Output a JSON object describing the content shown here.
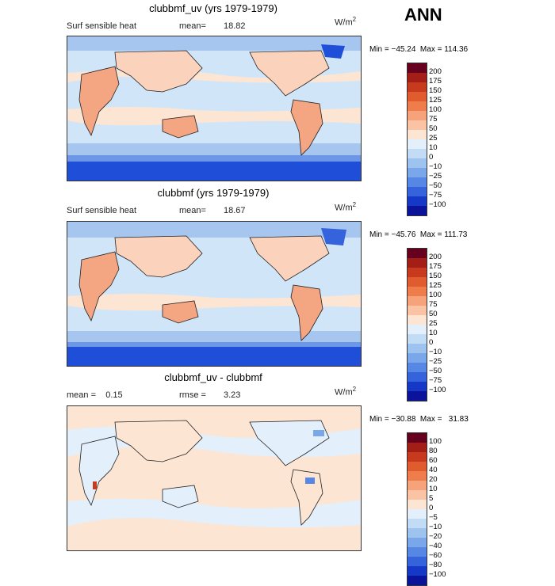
{
  "season": "ANN",
  "colors": {
    "land_warm_light": "#fbd3bd",
    "land_warm": "#f4a582",
    "ocean_light": "#d1e5f8",
    "ocean_mid": "#a7c6ef",
    "ocean_cool": "#6c97e6",
    "ice_deep": "#1f4fd8",
    "coastline": "#222222"
  },
  "panels": [
    {
      "title": "clubbmf_uv (yrs 1979-1979)",
      "left_label": "Surf sensible heat",
      "stat_label": "mean=",
      "stat_value": "18.82",
      "units_main": "W/m",
      "units_exp": "2",
      "min_max": "Min = −45.24  Max = 114.36",
      "colorbar": {
        "colors": [
          "#67001f",
          "#a21e16",
          "#c73a1e",
          "#e05b2e",
          "#ef7d4b",
          "#f6a27a",
          "#fac4a4",
          "#fde5d3",
          "#e3effb",
          "#c2dcf5",
          "#9ec3ef",
          "#7aa7ea",
          "#5787e4",
          "#3463dc",
          "#1538c6",
          "#0a139a"
        ],
        "ticks": [
          "200",
          "175",
          "150",
          "125",
          "100",
          "75",
          "50",
          "25",
          "10",
          "0",
          "−10",
          "−25",
          "−50",
          "−75",
          "−100"
        ]
      }
    },
    {
      "title": "clubbmf (yrs 1979-1979)",
      "left_label": "Surf sensible heat",
      "stat_label": "mean=",
      "stat_value": "18.67",
      "units_main": "W/m",
      "units_exp": "2",
      "min_max": "Min = −45.76  Max = 111.73",
      "colorbar": {
        "colors": [
          "#67001f",
          "#a21e16",
          "#c73a1e",
          "#e05b2e",
          "#ef7d4b",
          "#f6a27a",
          "#fac4a4",
          "#fde5d3",
          "#e3effb",
          "#c2dcf5",
          "#9ec3ef",
          "#7aa7ea",
          "#5787e4",
          "#3463dc",
          "#1538c6",
          "#0a139a"
        ],
        "ticks": [
          "200",
          "175",
          "150",
          "125",
          "100",
          "75",
          "50",
          "25",
          "10",
          "0",
          "−10",
          "−25",
          "−50",
          "−75",
          "−100"
        ]
      }
    },
    {
      "title": "clubbmf_uv - clubbmf",
      "left_label": "mean =    0.15",
      "stat_label": "rmse =",
      "stat_value": "3.23",
      "units_main": "W/m",
      "units_exp": "2",
      "min_max": "Min = −30.88  Max =   31.83",
      "colorbar": {
        "colors": [
          "#67001f",
          "#a21e16",
          "#c73a1e",
          "#e05b2e",
          "#ef7d4b",
          "#f6a27a",
          "#fac4a4",
          "#fde5d3",
          "#e3effb",
          "#c2dcf5",
          "#9ec3ef",
          "#7aa7ea",
          "#5787e4",
          "#3463dc",
          "#1538c6",
          "#0a139a"
        ],
        "ticks": [
          "100",
          "80",
          "60",
          "40",
          "20",
          "10",
          "5",
          "0",
          "−5",
          "−10",
          "−20",
          "−40",
          "−60",
          "−80",
          "−100"
        ]
      }
    }
  ]
}
